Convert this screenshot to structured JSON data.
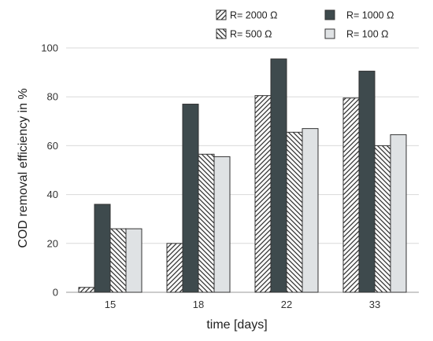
{
  "chart_data": {
    "type": "bar",
    "title": "",
    "xlabel": "time [days]",
    "ylabel": "COD removal efficiency in %",
    "categories": [
      "15",
      "18",
      "22",
      "33"
    ],
    "ylim": [
      0,
      100
    ],
    "yticks": [
      0,
      20,
      40,
      60,
      80,
      100
    ],
    "grid": true,
    "legend_position": "top-right",
    "series": [
      {
        "name": "R= 2000 Ω",
        "values": [
          2,
          20,
          80.5,
          79.5
        ],
        "fill": "hatch-forward",
        "color": "#333333"
      },
      {
        "name": "R= 1000 Ω",
        "values": [
          36,
          77,
          95.5,
          90.5
        ],
        "fill": "solid",
        "color": "#3e4a4d"
      },
      {
        "name": "R= 500 Ω",
        "values": [
          26,
          56.5,
          65.5,
          60
        ],
        "fill": "hatch-backward",
        "color": "#333333"
      },
      {
        "name": "R= 100 Ω",
        "values": [
          26,
          55.5,
          67,
          64.5
        ],
        "fill": "solid",
        "color": "#dfe2e4"
      }
    ]
  }
}
